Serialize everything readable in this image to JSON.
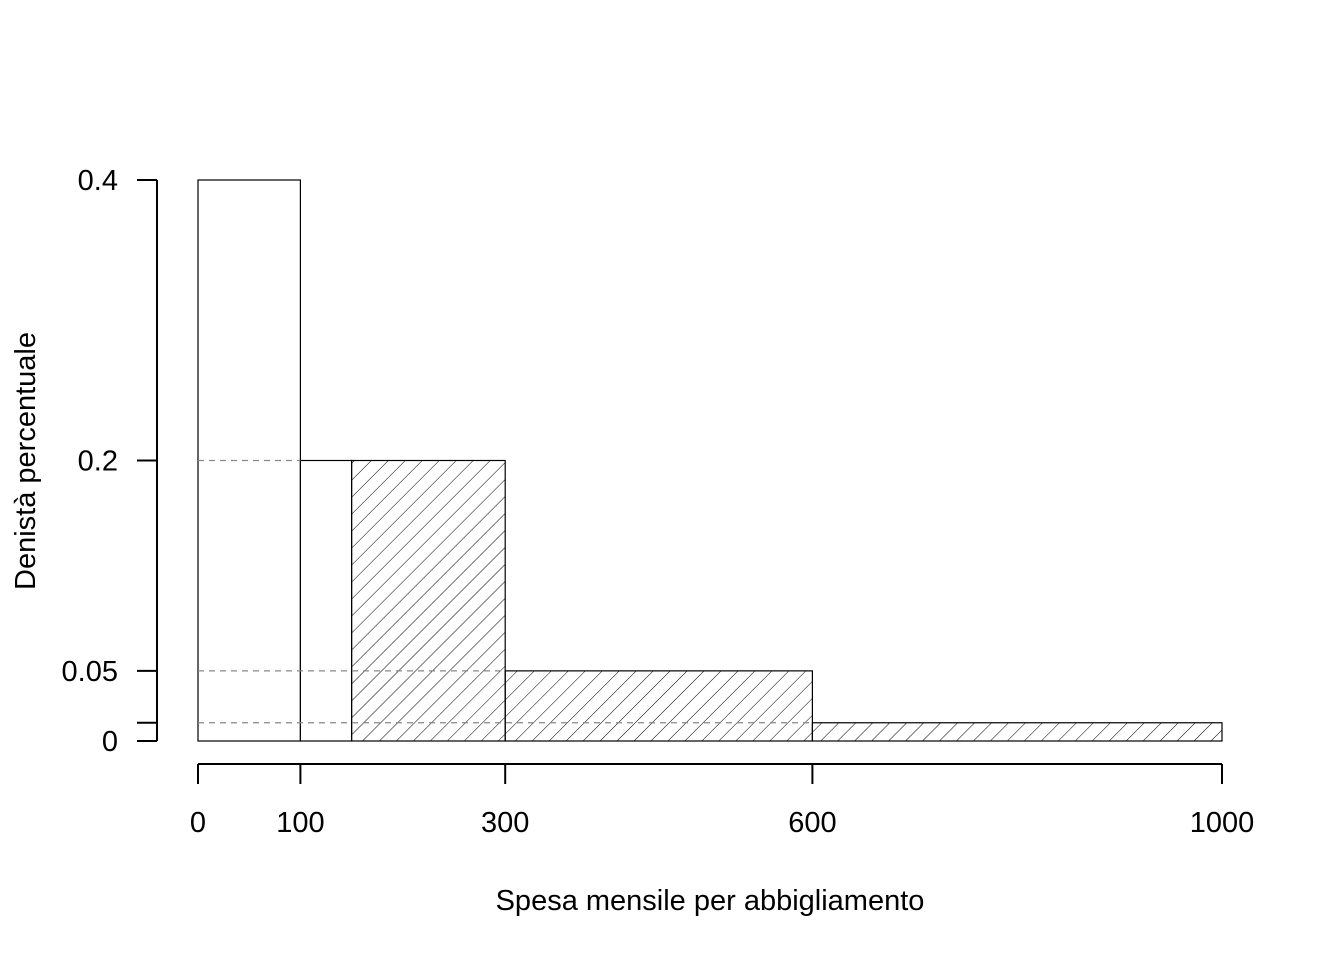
{
  "chart_data": {
    "type": "bar",
    "xlabel": "Spesa mensile per abbigliamento",
    "ylabel": "Denistà percentuale",
    "xlim": [
      0,
      1000
    ],
    "ylim": [
      0,
      0.4
    ],
    "x_ticks": [
      0,
      100,
      300,
      600,
      1000
    ],
    "x_tick_labels": [
      "0",
      "100",
      "300",
      "600",
      "1000"
    ],
    "y_ticks": [
      0,
      0.013,
      0.05,
      0.2,
      0.4
    ],
    "y_tick_labels": [
      "0",
      "",
      "0.05",
      "0.2",
      "0.4"
    ],
    "bins": [
      {
        "from": 0,
        "to": 100,
        "density": 0.4,
        "hatched": false
      },
      {
        "from": 100,
        "to": 150,
        "density": 0.2,
        "hatched": false
      },
      {
        "from": 150,
        "to": 300,
        "density": 0.2,
        "hatched": true
      },
      {
        "from": 300,
        "to": 600,
        "density": 0.05,
        "hatched": true
      },
      {
        "from": 600,
        "to": 1000,
        "density": 0.013,
        "hatched": true
      }
    ],
    "reference_lines": [
      {
        "y": 0.2,
        "x_from": 0,
        "x_to": 100
      },
      {
        "y": 0.05,
        "x_from": 0,
        "x_to": 300
      },
      {
        "y": 0.013,
        "x_from": 0,
        "x_to": 600
      }
    ],
    "grid": false,
    "legend": "none",
    "colors": {
      "stroke": "#000000",
      "reference": "#888888",
      "background": "#ffffff"
    }
  }
}
